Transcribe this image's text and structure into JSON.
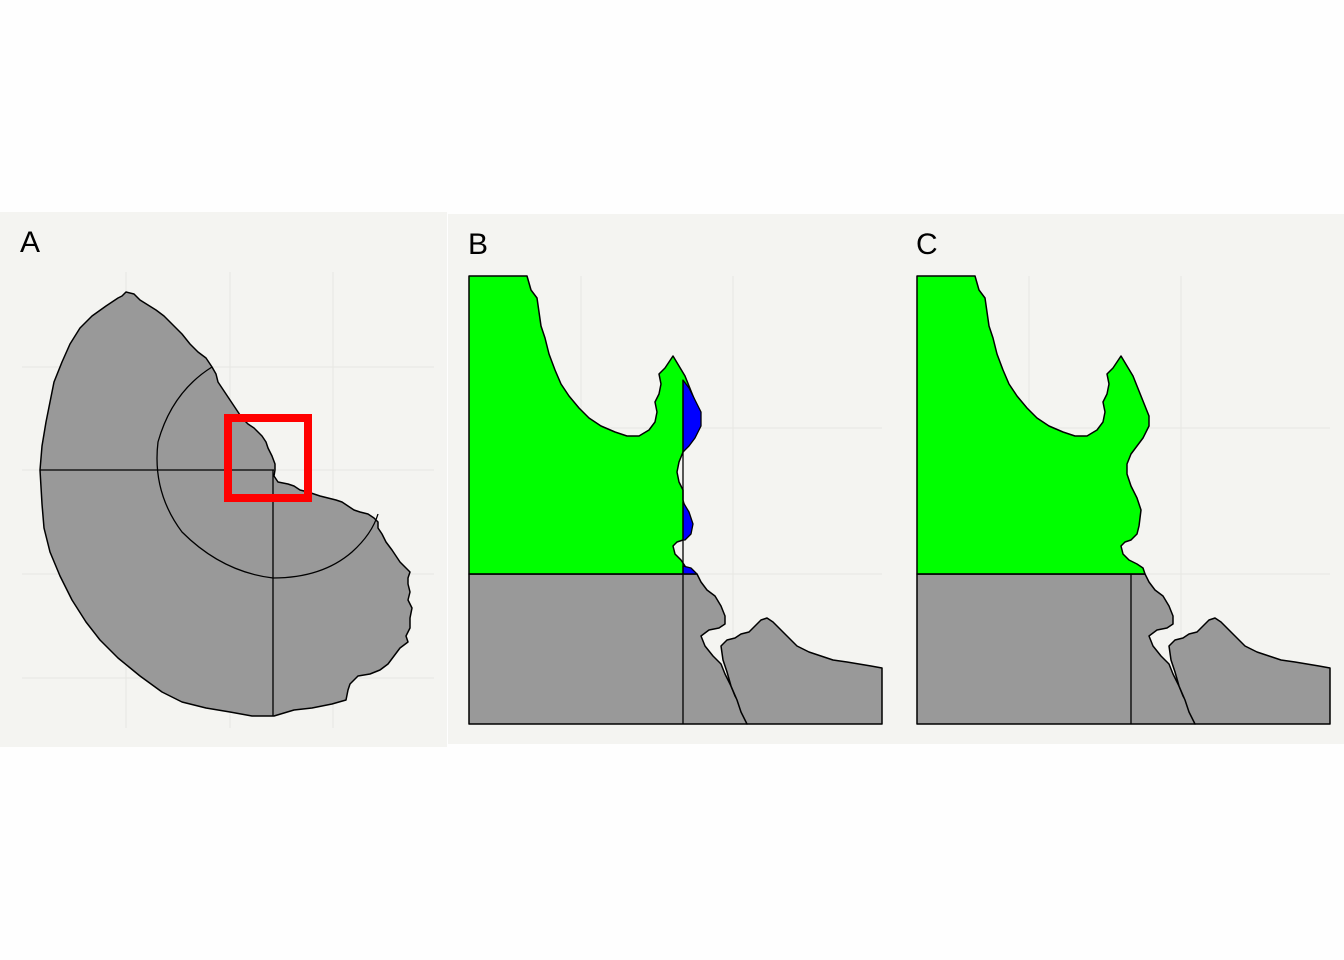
{
  "panels": {
    "a": {
      "label": "A"
    },
    "b": {
      "label": "B"
    },
    "c": {
      "label": "C"
    }
  },
  "colors": {
    "background": "#F4F4F1",
    "grid": "#E6E6E3",
    "region_fill": "#999999",
    "highlight_green": "#00FF00",
    "highlight_blue": "#0000FF",
    "inset_box": "#FF0000",
    "outline": "#000000"
  }
}
